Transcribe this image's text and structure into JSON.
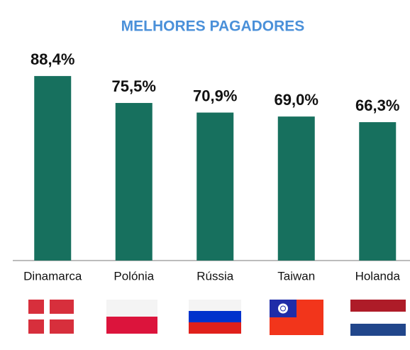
{
  "chart_data": {
    "type": "bar",
    "title": "MELHORES PAGADORES",
    "categories": [
      "Dinamarca",
      "Polónia",
      "Rússia",
      "Taiwan",
      "Holanda"
    ],
    "values": [
      88.4,
      75.5,
      70.9,
      69.0,
      66.3
    ],
    "value_labels": [
      "88,4%",
      "75,5%",
      "70,9%",
      "69,0%",
      "66,3%"
    ],
    "color": "#17705e"
  }
}
